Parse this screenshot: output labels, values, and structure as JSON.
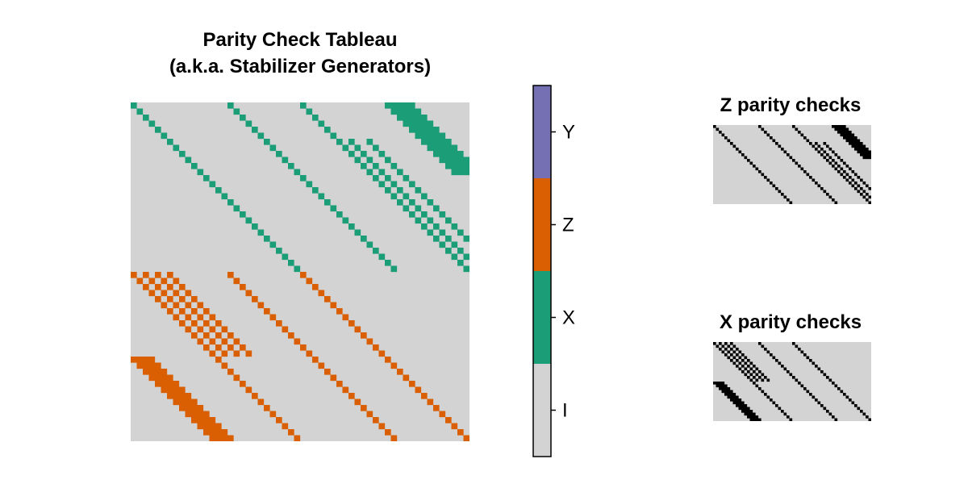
{
  "chart_data": [
    {
      "type": "heatmap",
      "title": "Parity Check Tableau",
      "subtitle": "(a.k.a. Stabilizer Generators)",
      "rows": 56,
      "cols": 56,
      "value_legend": {
        "0": "I",
        "1": "X",
        "2": "Z",
        "3": "Y"
      },
      "colorbar": {
        "ticks": [
          "I",
          "X",
          "Z",
          "Y"
        ],
        "colors": [
          "#d3d3d3",
          "#1b9e77",
          "#d95f02",
          "#7570b3"
        ]
      },
      "grid": false,
      "generators": [
        {
          "pauli": 1,
          "rows": [
            0,
            28
          ],
          "offsets": [
            0,
            16,
            28
          ],
          "step": 1
        },
        {
          "pauli": 1,
          "rows": [
            0,
            12
          ],
          "offsets": [
            42,
            43,
            44,
            45,
            46
          ],
          "step": 1
        },
        {
          "pauli": 1,
          "rows": [
            12,
            28
          ],
          "offsets": [
            16,
            28
          ],
          "step": 1
        },
        {
          "pauli": 1,
          "rows": [
            6,
            28
          ],
          "offsets": [
            28,
            30,
            33
          ],
          "step": 1
        },
        {
          "pauli": 2,
          "rows": [
            28,
            56
          ],
          "offsets": [
            -28,
            -12,
            0
          ],
          "step": 1
        },
        {
          "pauli": 2,
          "rows": [
            42,
            56
          ],
          "offsets": [
            -42,
            -41,
            -40,
            -39
          ],
          "step": 1
        },
        {
          "pauli": 2,
          "rows": [
            28,
            42
          ],
          "offsets": [
            -22,
            -24,
            -26
          ],
          "step": 1
        }
      ]
    },
    {
      "type": "heatmap",
      "title": "Z parity checks",
      "rows": 28,
      "cols": 56,
      "value_legend": {
        "0": "0",
        "1": "1"
      },
      "colors": [
        "#d3d3d3",
        "#000000"
      ],
      "grid": false
    },
    {
      "type": "heatmap",
      "title": "X parity checks",
      "rows": 28,
      "cols": 56,
      "value_legend": {
        "0": "0",
        "1": "1"
      },
      "colors": [
        "#d3d3d3",
        "#000000"
      ],
      "grid": false
    }
  ]
}
